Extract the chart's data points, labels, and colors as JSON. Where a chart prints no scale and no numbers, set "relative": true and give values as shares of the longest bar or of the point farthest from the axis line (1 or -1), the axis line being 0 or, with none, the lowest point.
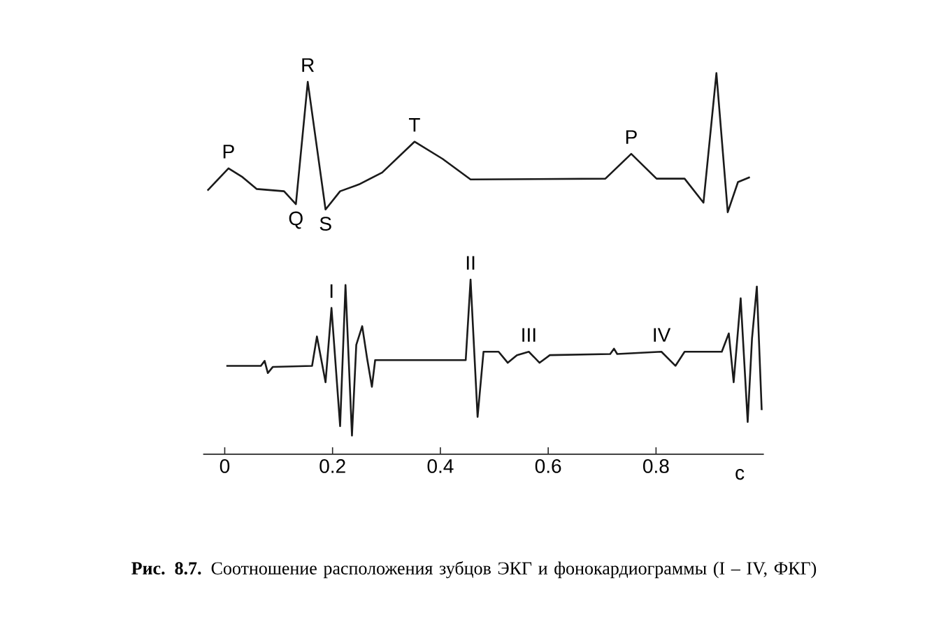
{
  "chart_data": {
    "type": "line",
    "relative": true,
    "xlim": [
      -0.04,
      1.0
    ],
    "xticks": [
      0,
      0.2,
      0.4,
      0.6,
      0.8
    ],
    "xlabel": "с",
    "tick_labels": "x",
    "series": [
      {
        "color": "#1a1a1a",
        "x": [
          -0.032,
          0.007,
          0.033,
          0.059,
          0.11,
          0.132,
          0.154,
          0.187,
          0.214,
          0.249,
          0.292,
          0.352,
          0.404,
          0.456,
          0.706,
          0.754,
          0.801,
          0.853,
          0.888,
          0.912,
          0.933,
          0.952,
          0.974
        ],
        "values": [
          0.692,
          0.75,
          0.727,
          0.696,
          0.69,
          0.656,
          0.977,
          0.642,
          0.69,
          0.708,
          0.739,
          0.82,
          0.775,
          0.721,
          0.723,
          0.788,
          0.723,
          0.723,
          0.66,
          1.0,
          0.635,
          0.714,
          0.727
        ]
      },
      {
        "color": "#1a1a1a",
        "x": [
          0.003,
          0.067,
          0.074,
          0.08,
          0.089,
          0.162,
          0.171,
          0.187,
          0.198,
          0.214,
          0.224,
          0.236,
          0.244,
          0.255,
          0.264,
          0.273,
          0.279,
          0.447,
          0.456,
          0.469,
          0.48,
          0.508,
          0.525,
          0.542,
          0.564,
          0.584,
          0.603,
          0.715,
          0.722,
          0.728,
          0.81,
          0.836,
          0.853,
          0.922,
          0.935,
          0.944,
          0.957,
          0.97,
          0.978,
          0.987,
          0.996
        ],
        "values": [
          0.232,
          0.232,
          0.245,
          0.213,
          0.229,
          0.232,
          0.309,
          0.189,
          0.384,
          0.074,
          0.444,
          0.049,
          0.287,
          0.336,
          0.252,
          0.177,
          0.247,
          0.247,
          0.458,
          0.098,
          0.269,
          0.269,
          0.24,
          0.26,
          0.269,
          0.24,
          0.26,
          0.263,
          0.277,
          0.263,
          0.269,
          0.232,
          0.269,
          0.269,
          0.317,
          0.189,
          0.409,
          0.085,
          0.303,
          0.44,
          0.116
        ]
      }
    ],
    "annotations": [
      {
        "text": "P",
        "x": 0.007,
        "y": 0.75
      },
      {
        "text": "R",
        "x": 0.154,
        "y": 0.977
      },
      {
        "text": "T",
        "x": 0.352,
        "y": 0.82
      },
      {
        "text": "P",
        "x": 0.754,
        "y": 0.788
      },
      {
        "text": "Q",
        "x": 0.132,
        "y": 0.656
      },
      {
        "text": "S",
        "x": 0.187,
        "y": 0.642
      },
      {
        "text": "I",
        "x": 0.198,
        "y": 0.384
      },
      {
        "text": "II",
        "x": 0.456,
        "y": 0.458
      },
      {
        "text": "III",
        "x": 0.564,
        "y": 0.269
      },
      {
        "text": "IV",
        "x": 0.81,
        "y": 0.269
      },
      "**Рис. 8.7.** Соотношение расположения зубцов ЭКГ и фонокардиограммы (I – IV, ФКГ)"
    ]
  }
}
